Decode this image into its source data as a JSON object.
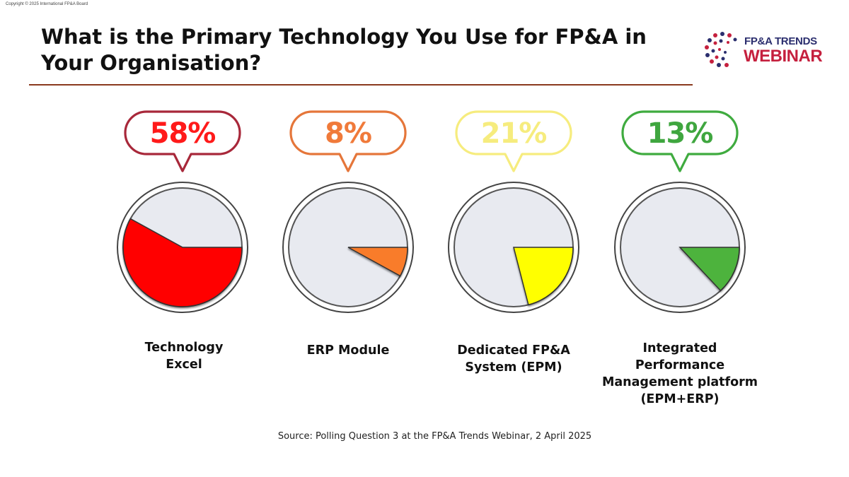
{
  "copyright": "Copyright © 2025 International FP&A Board",
  "title": "What is the Primary Technology You Use for FP&A in Your Organisation?",
  "logo": {
    "line1": "FP&A TRENDS",
    "line2": "WEBINAR"
  },
  "source": "Source: Polling Question 3 at the FP&A Trends Webinar, 2 April 2025",
  "chart_data": {
    "type": "pie",
    "unit": "%",
    "categories": [
      "Technology Excel",
      "ERP Module",
      "Dedicated FP&A System (EPM)",
      "Integrated Performance Management platform (EPM+ERP)"
    ],
    "values": [
      58,
      8,
      21,
      13
    ],
    "value_labels": [
      "58%",
      "8%",
      "21%",
      "13%"
    ],
    "label_lines": [
      [
        "Technology",
        "Excel"
      ],
      [
        "ERP Module"
      ],
      [
        "Dedicated FP&A",
        "System (EPM)"
      ],
      [
        "Integrated",
        "Performance",
        "Management platform",
        "(EPM+ERP)"
      ]
    ],
    "colors": [
      "#ff0000",
      "#f97c2a",
      "#ffff00",
      "#4db33d"
    ],
    "bubble_colors": [
      "#a8283a",
      "#e5763a",
      "#f6ec7e",
      "#3fab3f"
    ],
    "percent_text_colors": [
      "#ff1a1a",
      "#f07a3a",
      "#f6ec7e",
      "#3fa63f"
    ],
    "background_color": "#e8eaf0"
  }
}
